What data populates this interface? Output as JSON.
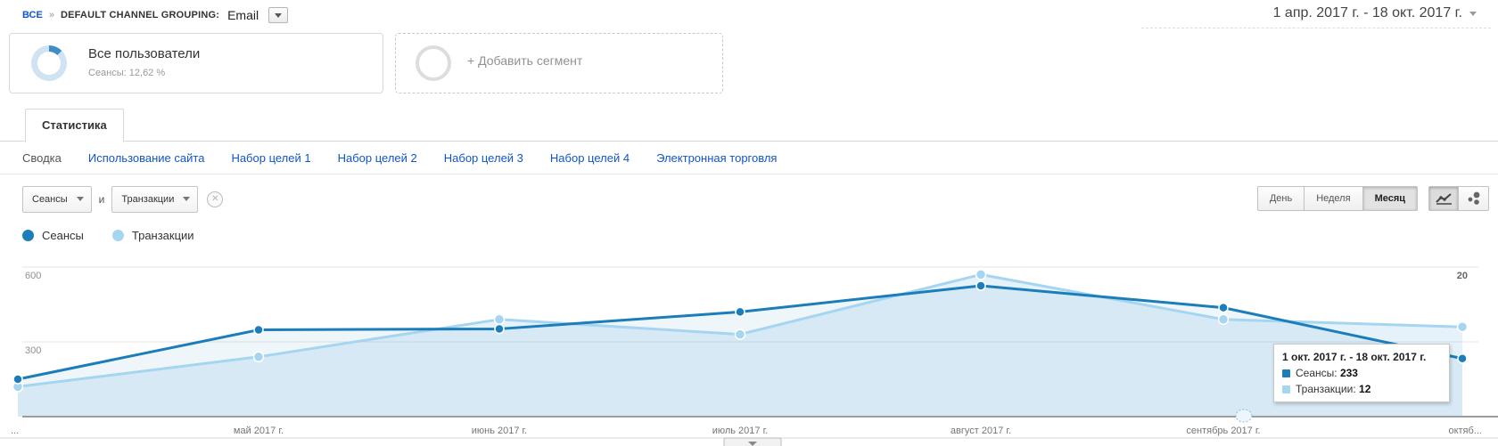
{
  "header": {
    "breadcrumb": {
      "all_label": "ВСЕ",
      "separator": "»",
      "dimension_label": "DEFAULT CHANNEL GROUPING:",
      "dimension_value": "Email"
    },
    "date_range": "1 апр. 2017 г. - 18 окт. 2017 г."
  },
  "segments": {
    "active": {
      "title": "Все пользователи",
      "subtitle": "Сеансы: 12,62 %",
      "sessions_percent": "12,62 %"
    },
    "add_label": "+ Добавить сегмент"
  },
  "tabs": {
    "active": "Статистика"
  },
  "subnav": {
    "items": [
      {
        "label": "Сводка",
        "active": true
      },
      {
        "label": "Использование сайта",
        "active": false
      },
      {
        "label": "Набор целей 1",
        "active": false
      },
      {
        "label": "Набор целей 2",
        "active": false
      },
      {
        "label": "Набор целей 3",
        "active": false
      },
      {
        "label": "Набор целей 4",
        "active": false
      },
      {
        "label": "Электронная торговля",
        "active": false
      }
    ]
  },
  "toolbar": {
    "metric_primary": "Сеансы",
    "conjunction": "и",
    "metric_secondary": "Транзакции",
    "granularity": [
      {
        "label": "День",
        "active": false
      },
      {
        "label": "Неделя",
        "active": false
      },
      {
        "label": "Месяц",
        "active": true
      }
    ],
    "chart_type_buttons": [
      "line-chart",
      "motion-chart"
    ]
  },
  "legend": {
    "series": [
      {
        "label": "Сеансы",
        "color": "#1b7db9"
      },
      {
        "label": "Транзакции",
        "color": "#a5d5f0"
      }
    ]
  },
  "chart_data": {
    "type": "line",
    "title": "",
    "xlabel": "",
    "ylabel": "",
    "x_labels": [
      "...",
      "май 2017 г.",
      "июнь 2017 г.",
      "июль 2017 г.",
      "август 2017 г.",
      "сентябрь 2017 г.",
      "октяб..."
    ],
    "series": [
      {
        "name": "Сеансы",
        "axis": "left",
        "color": "#1b7db9",
        "values": [
          150,
          348,
          352,
          420,
          525,
          437,
          233
        ]
      },
      {
        "name": "Транзакции",
        "axis": "right",
        "color": "#a5d5f0",
        "values": [
          4,
          8,
          13,
          11,
          19,
          13,
          12
        ]
      }
    ],
    "left_axis": {
      "ticks": [
        300,
        600
      ],
      "tick_labels": [
        "300",
        "600"
      ]
    },
    "right_axis": {
      "ticks": [
        20
      ],
      "tick_labels": [
        "20"
      ]
    },
    "grid": true,
    "legend_position": "top-left",
    "area_fill": true
  },
  "tooltip": {
    "title": "1 окт. 2017 г. - 18 окт. 2017 г.",
    "rows": [
      {
        "label": "Сеансы",
        "value": "233",
        "color": "#1b7db9"
      },
      {
        "label": "Транзакции",
        "value": "12",
        "color": "#a5d5f0"
      }
    ]
  },
  "colors": {
    "link": "#1155cc",
    "series_primary": "#1b7db9",
    "series_secondary": "#a5d5f0"
  }
}
